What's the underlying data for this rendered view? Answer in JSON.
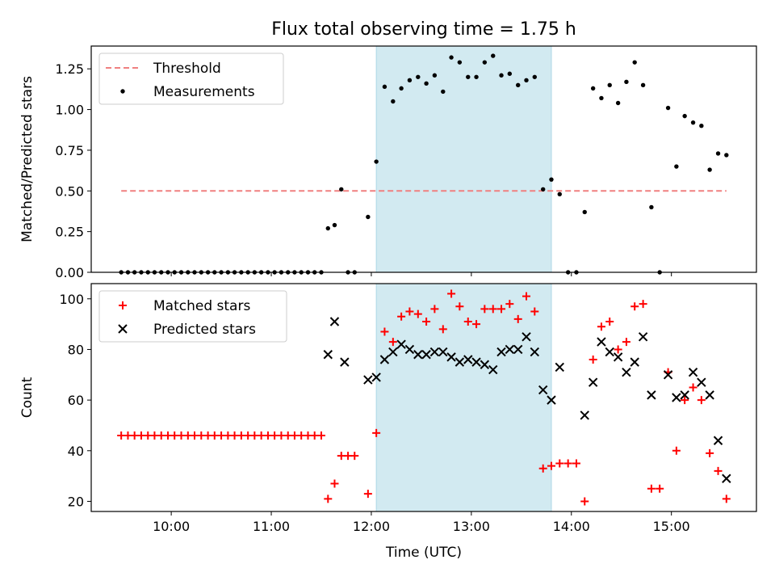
{
  "title": "Flux total observing time = 1.75 h",
  "colors": {
    "threshold": "#f08080",
    "measurement": "#000000",
    "matched": "#ff0000",
    "predicted": "#000000",
    "span": "#add8e6"
  },
  "chart_data": [
    {
      "type": "scatter",
      "id": "ratio",
      "ylabel": "Matched/Predicted stars",
      "xlabel": "",
      "xlim": [
        9.2,
        15.85
      ],
      "ylim": [
        0,
        1.39
      ],
      "yticks": [
        0,
        0.25,
        0.5,
        0.75,
        1.0,
        1.25
      ],
      "ytick_labels": [
        "0.00",
        "0.25",
        "0.50",
        "0.75",
        "1.00",
        "1.25"
      ],
      "xticks": [
        10,
        11,
        12,
        13,
        14,
        15
      ],
      "highlight_span": [
        12.05,
        13.8
      ],
      "legend": {
        "placement": "upper-left",
        "entries": [
          "Threshold",
          "Measurements"
        ]
      },
      "threshold": {
        "name": "Threshold",
        "y": 0.5,
        "x": [
          9.5,
          15.55
        ]
      },
      "series": [
        {
          "name": "Measurements",
          "marker": "dot",
          "x": [
            9.5,
            9.567,
            9.633,
            9.7,
            9.767,
            9.833,
            9.9,
            9.967,
            10.033,
            10.1,
            10.167,
            10.233,
            10.3,
            10.367,
            10.433,
            10.5,
            10.567,
            10.633,
            10.7,
            10.767,
            10.833,
            10.9,
            10.967,
            11.033,
            11.1,
            11.167,
            11.233,
            11.3,
            11.367,
            11.433,
            11.5,
            11.567,
            11.633,
            11.7,
            11.767,
            11.833,
            11.967,
            12.05,
            12.133,
            12.217,
            12.3,
            12.383,
            12.467,
            12.55,
            12.633,
            12.717,
            12.8,
            12.883,
            12.967,
            13.05,
            13.133,
            13.217,
            13.3,
            13.383,
            13.467,
            13.55,
            13.633,
            13.717,
            13.8,
            13.883,
            13.967,
            14.05,
            14.133,
            14.217,
            14.3,
            14.383,
            14.467,
            14.55,
            14.633,
            14.717,
            14.8,
            14.883,
            14.967,
            15.05,
            15.133,
            15.217,
            15.3,
            15.383,
            15.467,
            15.55
          ],
          "y": [
            0,
            0,
            0,
            0,
            0,
            0,
            0,
            0,
            0,
            0,
            0,
            0,
            0,
            0,
            0,
            0,
            0,
            0,
            0,
            0,
            0,
            0,
            0,
            0,
            0,
            0,
            0,
            0,
            0,
            0,
            0,
            0.27,
            0.29,
            0.51,
            0,
            0,
            0.34,
            0.68,
            1.14,
            1.05,
            1.13,
            1.18,
            1.2,
            1.16,
            1.21,
            1.11,
            1.32,
            1.29,
            1.2,
            1.2,
            1.29,
            1.33,
            1.21,
            1.22,
            1.15,
            1.18,
            1.2,
            0.51,
            0.57,
            0.48,
            0,
            0,
            0.37,
            1.13,
            1.07,
            1.15,
            1.04,
            1.17,
            1.29,
            1.15,
            0.4,
            0,
            1.01,
            0.65,
            0.96,
            0.92,
            0.9,
            0.63,
            0.73,
            0.72
          ]
        }
      ]
    },
    {
      "type": "scatter",
      "id": "counts",
      "ylabel": "Count",
      "xlabel": "Time (UTC)",
      "xlim": [
        9.2,
        15.85
      ],
      "ylim": [
        16,
        106
      ],
      "yticks": [
        20,
        40,
        60,
        80,
        100
      ],
      "ytick_labels": [
        "20",
        "40",
        "60",
        "80",
        "100"
      ],
      "xticks": [
        10,
        11,
        12,
        13,
        14,
        15
      ],
      "xtick_labels": [
        "10:00",
        "11:00",
        "12:00",
        "13:00",
        "14:00",
        "15:00"
      ],
      "highlight_span": [
        12.05,
        13.8
      ],
      "legend": {
        "placement": "upper-left",
        "entries": [
          "Matched stars",
          "Predicted stars"
        ]
      },
      "series": [
        {
          "name": "Matched stars",
          "marker": "plus",
          "x": [
            9.5,
            9.567,
            9.633,
            9.7,
            9.767,
            9.833,
            9.9,
            9.967,
            10.033,
            10.1,
            10.167,
            10.233,
            10.3,
            10.367,
            10.433,
            10.5,
            10.567,
            10.633,
            10.7,
            10.767,
            10.833,
            10.9,
            10.967,
            11.033,
            11.1,
            11.167,
            11.233,
            11.3,
            11.367,
            11.433,
            11.5,
            11.567,
            11.633,
            11.7,
            11.767,
            11.833,
            11.967,
            12.05,
            12.133,
            12.217,
            12.3,
            12.383,
            12.467,
            12.55,
            12.633,
            12.717,
            12.8,
            12.883,
            12.967,
            13.05,
            13.133,
            13.217,
            13.3,
            13.383,
            13.467,
            13.55,
            13.633,
            13.717,
            13.8,
            13.883,
            13.967,
            14.05,
            14.133,
            14.217,
            14.3,
            14.383,
            14.467,
            14.55,
            14.633,
            14.717,
            14.8,
            14.883,
            14.967,
            15.05,
            15.133,
            15.217,
            15.3,
            15.383,
            15.467,
            15.55
          ],
          "y": [
            46,
            46,
            46,
            46,
            46,
            46,
            46,
            46,
            46,
            46,
            46,
            46,
            46,
            46,
            46,
            46,
            46,
            46,
            46,
            46,
            46,
            46,
            46,
            46,
            46,
            46,
            46,
            46,
            46,
            46,
            46,
            21,
            27,
            38,
            38,
            38,
            23,
            47,
            87,
            83,
            93,
            95,
            94,
            91,
            96,
            88,
            102,
            97,
            91,
            90,
            96,
            96,
            96,
            98,
            92,
            101,
            95,
            33,
            34,
            35,
            35,
            35,
            20,
            76,
            89,
            91,
            80,
            83,
            97,
            98,
            25,
            25,
            71,
            40,
            60,
            65,
            60,
            39,
            32,
            21
          ]
        },
        {
          "name": "Predicted stars",
          "marker": "x",
          "x": [
            11.567,
            11.633,
            11.733,
            11.967,
            12.05,
            12.133,
            12.217,
            12.3,
            12.383,
            12.467,
            12.55,
            12.633,
            12.717,
            12.8,
            12.883,
            12.967,
            13.05,
            13.133,
            13.217,
            13.3,
            13.383,
            13.467,
            13.55,
            13.633,
            13.717,
            13.8,
            13.883,
            14.133,
            14.217,
            14.3,
            14.383,
            14.467,
            14.55,
            14.633,
            14.717,
            14.8,
            14.967,
            15.05,
            15.133,
            15.217,
            15.3,
            15.383,
            15.467,
            15.55
          ],
          "y": [
            78,
            91,
            75,
            68,
            69,
            76,
            79,
            82,
            80,
            78,
            78,
            79,
            79,
            77,
            75,
            76,
            75,
            74,
            72,
            79,
            80,
            80,
            85,
            79,
            64,
            60,
            73,
            54,
            67,
            83,
            79,
            77,
            71,
            75,
            85,
            62,
            70,
            61,
            62,
            71,
            67,
            62,
            44,
            29
          ]
        }
      ]
    }
  ]
}
